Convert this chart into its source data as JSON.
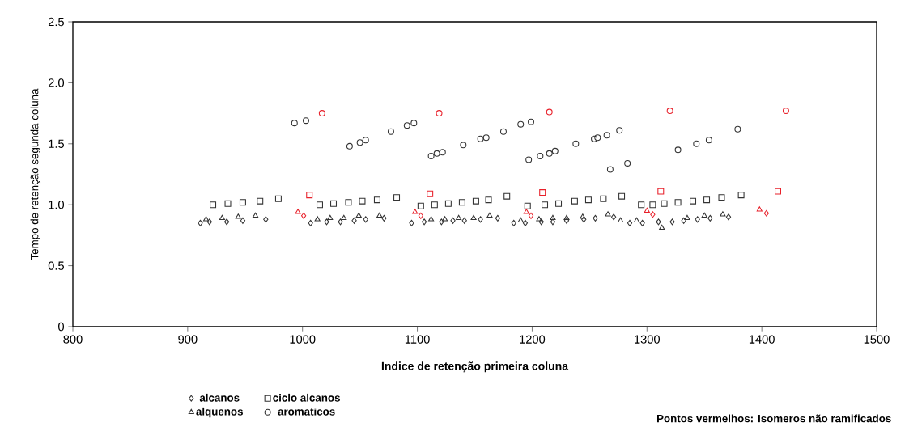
{
  "chart_data": {
    "type": "scatter",
    "xlabel": "Indice de retenção primeira coluna",
    "ylabel": "Tempo de retenção segunda coluna",
    "xlim": [
      800,
      1500
    ],
    "xticks": [
      800,
      900,
      1000,
      1100,
      1200,
      1300,
      1400,
      1500
    ],
    "ylim": [
      0,
      2.5
    ],
    "yticks": [
      {
        "value": 0,
        "label": "0"
      },
      0.5,
      {
        "value": 1,
        "label": "1.0"
      },
      1.5,
      {
        "value": 2,
        "label": "2.0"
      },
      2.5
    ],
    "grid": false,
    "legend": "bottom",
    "annotations": [
      "Pontos vermelhos: Isomeros não ramificados"
    ],
    "series": [
      {
        "name": "alcanos",
        "marker": "diamond",
        "color": "#333333",
        "x": [
          911,
          919,
          934,
          948,
          968,
          1001,
          1007,
          1021,
          1033,
          1045,
          1055,
          1071,
          1103,
          1095,
          1106,
          1121,
          1131,
          1141,
          1155,
          1170,
          1199,
          1184,
          1194,
          1208,
          1218,
          1230,
          1245,
          1255,
          1271,
          1305,
          1285,
          1296,
          1310,
          1322,
          1332,
          1344,
          1355,
          1371,
          1404
        ],
        "values": [
          0.85,
          0.86,
          0.86,
          0.87,
          0.88,
          0.91,
          0.85,
          0.86,
          0.86,
          0.87,
          0.88,
          0.89,
          0.91,
          0.85,
          0.86,
          0.86,
          0.87,
          0.87,
          0.88,
          0.89,
          0.91,
          0.85,
          0.85,
          0.86,
          0.86,
          0.87,
          0.88,
          0.89,
          0.9,
          0.92,
          0.85,
          0.85,
          0.86,
          0.86,
          0.87,
          0.88,
          0.89,
          0.9,
          0.93
        ],
        "colors": [
          "#333333",
          "#333333",
          "#333333",
          "#333333",
          "#333333",
          "#e8202a",
          "#333333",
          "#333333",
          "#333333",
          "#333333",
          "#333333",
          "#333333",
          "#e8202a",
          "#333333",
          "#333333",
          "#333333",
          "#333333",
          "#333333",
          "#333333",
          "#333333",
          "#e8202a",
          "#333333",
          "#333333",
          "#333333",
          "#333333",
          "#333333",
          "#333333",
          "#333333",
          "#333333",
          "#e8202a",
          "#333333",
          "#333333",
          "#333333",
          "#333333",
          "#333333",
          "#333333",
          "#333333",
          "#333333",
          "#e8202a"
        ]
      },
      {
        "name": "alquenos",
        "marker": "triangle",
        "color": "#333333",
        "x": [
          916,
          930,
          944,
          959,
          996,
          1013,
          1024,
          1036,
          1049,
          1067,
          1098,
          1112,
          1124,
          1136,
          1149,
          1163,
          1195,
          1190,
          1206,
          1218,
          1230,
          1244,
          1266,
          1300,
          1277,
          1291,
          1313,
          1335,
          1350,
          1366,
          1398
        ],
        "values": [
          0.88,
          0.89,
          0.9,
          0.91,
          0.94,
          0.88,
          0.89,
          0.89,
          0.91,
          0.91,
          0.94,
          0.88,
          0.88,
          0.89,
          0.89,
          0.91,
          0.94,
          0.87,
          0.88,
          0.89,
          0.89,
          0.9,
          0.92,
          0.95,
          0.87,
          0.87,
          0.81,
          0.89,
          0.91,
          0.92,
          0.96
        ],
        "colors": [
          "#333333",
          "#333333",
          "#333333",
          "#333333",
          "#e8202a",
          "#333333",
          "#333333",
          "#333333",
          "#333333",
          "#333333",
          "#e8202a",
          "#333333",
          "#333333",
          "#333333",
          "#333333",
          "#333333",
          "#e8202a",
          "#333333",
          "#333333",
          "#333333",
          "#333333",
          "#333333",
          "#333333",
          "#e8202a",
          "#333333",
          "#333333",
          "#333333",
          "#333333",
          "#333333",
          "#333333",
          "#e8202a"
        ]
      },
      {
        "name": "ciclo alcanos",
        "marker": "square",
        "color": "#333333",
        "x": [
          922,
          935,
          948,
          963,
          979,
          1006,
          1015,
          1027,
          1040,
          1052,
          1065,
          1082,
          1111,
          1103,
          1115,
          1127,
          1139,
          1151,
          1162,
          1178,
          1209,
          1196,
          1211,
          1223,
          1237,
          1249,
          1262,
          1278,
          1312,
          1295,
          1305,
          1315,
          1327,
          1340,
          1352,
          1365,
          1382,
          1414
        ],
        "values": [
          1.0,
          1.01,
          1.02,
          1.03,
          1.05,
          1.08,
          1.0,
          1.01,
          1.02,
          1.03,
          1.04,
          1.06,
          1.09,
          0.99,
          1.0,
          1.01,
          1.02,
          1.03,
          1.04,
          1.07,
          1.1,
          0.99,
          1.0,
          1.01,
          1.03,
          1.04,
          1.05,
          1.07,
          1.11,
          1.0,
          1.0,
          1.01,
          1.02,
          1.03,
          1.04,
          1.06,
          1.08,
          1.11
        ],
        "colors": [
          "#333333",
          "#333333",
          "#333333",
          "#333333",
          "#333333",
          "#e8202a",
          "#333333",
          "#333333",
          "#333333",
          "#333333",
          "#333333",
          "#333333",
          "#e8202a",
          "#333333",
          "#333333",
          "#333333",
          "#333333",
          "#333333",
          "#333333",
          "#333333",
          "#e8202a",
          "#333333",
          "#333333",
          "#333333",
          "#333333",
          "#333333",
          "#333333",
          "#333333",
          "#e8202a",
          "#333333",
          "#333333",
          "#333333",
          "#333333",
          "#333333",
          "#333333",
          "#333333",
          "#333333",
          "#e8202a"
        ]
      },
      {
        "name": "aromaticos",
        "marker": "circle",
        "color": "#333333",
        "x": [
          993,
          1003,
          1017,
          1041,
          1050,
          1055,
          1077,
          1091,
          1097,
          1119,
          1112,
          1117,
          1122,
          1140,
          1155,
          1160,
          1175,
          1190,
          1199,
          1215,
          1197,
          1207,
          1215,
          1220,
          1238,
          1254,
          1257,
          1265,
          1276,
          1268,
          1283,
          1320,
          1327,
          1343,
          1354,
          1379,
          1421
        ],
        "values": [
          1.67,
          1.69,
          1.75,
          1.48,
          1.51,
          1.53,
          1.6,
          1.65,
          1.67,
          1.75,
          1.4,
          1.42,
          1.43,
          1.49,
          1.54,
          1.55,
          1.6,
          1.66,
          1.68,
          1.76,
          1.37,
          1.4,
          1.42,
          1.44,
          1.5,
          1.54,
          1.55,
          1.57,
          1.61,
          1.29,
          1.34,
          1.77,
          1.45,
          1.5,
          1.53,
          1.62,
          1.77
        ],
        "colors": [
          "#333333",
          "#333333",
          "#e8202a",
          "#333333",
          "#333333",
          "#333333",
          "#333333",
          "#333333",
          "#333333",
          "#e8202a",
          "#333333",
          "#333333",
          "#333333",
          "#333333",
          "#333333",
          "#333333",
          "#333333",
          "#333333",
          "#333333",
          "#e8202a",
          "#333333",
          "#333333",
          "#333333",
          "#333333",
          "#333333",
          "#333333",
          "#333333",
          "#333333",
          "#333333",
          "#333333",
          "#333333",
          "#e8202a",
          "#333333",
          "#333333",
          "#333333",
          "#333333",
          "#e8202a"
        ]
      }
    ]
  }
}
